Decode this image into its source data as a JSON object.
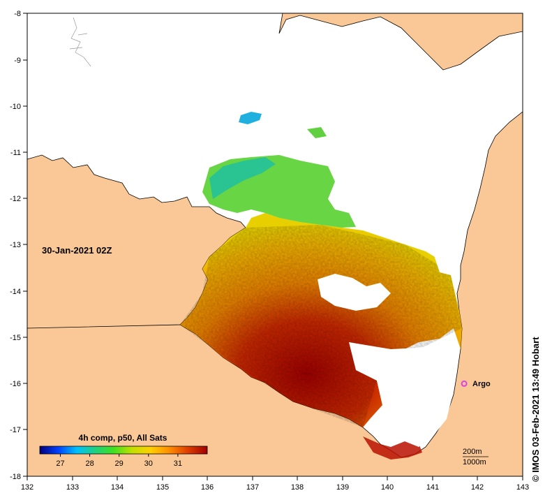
{
  "map": {
    "date_label": "30-Jan-2021 02Z",
    "credit": "© IMOS 03-Feb-2021 13:49 Hobart",
    "lon_ticks": [
      "132",
      "133",
      "134",
      "135",
      "136",
      "137",
      "138",
      "139",
      "140",
      "141",
      "142",
      "143"
    ],
    "lat_ticks": [
      "-8",
      "-9",
      "-10",
      "-11",
      "-12",
      "-13",
      "-14",
      "-15",
      "-16",
      "-17",
      "-18"
    ],
    "lon_range": [
      132,
      143
    ],
    "lat_range": [
      -18,
      -8
    ],
    "argo": {
      "label": "Argo",
      "lon": 141.7,
      "lat": -16.0,
      "color": "#e040e0"
    },
    "scale": {
      "contour_1": "200m",
      "contour_2": "1000m"
    },
    "colorbar": {
      "title": "4h comp, p50, All Sats",
      "ticks": [
        "27",
        "28",
        "29",
        "30",
        "31"
      ],
      "min": 26.3,
      "max": 32.0,
      "colors": [
        "#00007a",
        "#0040ff",
        "#00c0ff",
        "#20d080",
        "#40e020",
        "#c0e000",
        "#ffd000",
        "#ff9000",
        "#e04000",
        "#a00000"
      ]
    },
    "colors": {
      "land": "#fac896",
      "coast": "#000000"
    }
  }
}
